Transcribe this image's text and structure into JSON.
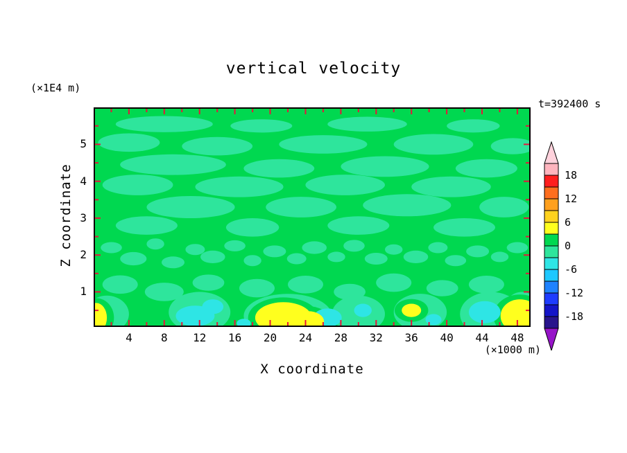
{
  "chart_data": {
    "type": "heatmap",
    "title": "vertical velocity",
    "time_label": "t=392400 s",
    "xlabel": "X coordinate",
    "x_unit": "(×1000 m)",
    "ylabel": "Z coordinate",
    "y_unit": "(×1E4 m)",
    "xlim": [
      0,
      49.5
    ],
    "ylim": [
      0,
      6
    ],
    "x_tick_labels": [
      "4",
      "8",
      "12",
      "16",
      "20",
      "24",
      "28",
      "32",
      "36",
      "40",
      "44",
      "48"
    ],
    "x_tick_values": [
      4,
      8,
      12,
      16,
      20,
      24,
      28,
      32,
      36,
      40,
      44,
      48
    ],
    "x_minor_step": 2,
    "z_tick_labels": [
      "1",
      "2",
      "3",
      "4",
      "5"
    ],
    "z_tick_values": [
      1,
      2,
      3,
      4,
      5
    ],
    "z_minor_step": 0.5,
    "tick_color": "#E8143C",
    "frame_color": "#000000",
    "colorbar": {
      "levels": [
        -21,
        -18,
        -15,
        -12,
        -9,
        -6,
        -3,
        0,
        3,
        6,
        9,
        12,
        15,
        18,
        21
      ],
      "label_values": [
        "18",
        "12",
        "6",
        "0",
        "-6",
        "-12",
        "-18"
      ],
      "segment_colors_top_to_bottom": [
        "#FFB4BE",
        "#FF1E1E",
        "#FF6E1E",
        "#FFA01E",
        "#FFD21E",
        "#FFFF1E",
        "#00D850",
        "#2EE59C",
        "#2EE5E5",
        "#1EC8FF",
        "#1E82FF",
        "#1E3CFF",
        "#1414C8",
        "#28148C"
      ],
      "top_arrow_color": "#FFD2DC",
      "bottom_arrow_color": "#9614C8"
    },
    "field": {
      "base_color": "#00D850",
      "light_color": "#2EE59C",
      "cyan_color": "#2EE5E5",
      "yellow_color": "#FFFF1E",
      "halo_color": "#00D850",
      "light_patches": [
        [
          8,
          5.55,
          5.5,
          0.22
        ],
        [
          19,
          5.5,
          3.5,
          0.18
        ],
        [
          31,
          5.55,
          4.5,
          0.2
        ],
        [
          43,
          5.5,
          3,
          0.18
        ],
        [
          4,
          5.05,
          3.5,
          0.25
        ],
        [
          14,
          4.95,
          4,
          0.25
        ],
        [
          26,
          5,
          5,
          0.25
        ],
        [
          38.5,
          5,
          4.5,
          0.28
        ],
        [
          47.5,
          4.95,
          2.5,
          0.22
        ],
        [
          9,
          4.45,
          6,
          0.28
        ],
        [
          21,
          4.35,
          4,
          0.25
        ],
        [
          33,
          4.4,
          5,
          0.28
        ],
        [
          44.5,
          4.35,
          3.5,
          0.25
        ],
        [
          5,
          3.9,
          4,
          0.28
        ],
        [
          16.5,
          3.85,
          5,
          0.28
        ],
        [
          28.5,
          3.9,
          4.5,
          0.28
        ],
        [
          40.5,
          3.85,
          4.5,
          0.28
        ],
        [
          11,
          3.3,
          5,
          0.3
        ],
        [
          23.5,
          3.3,
          4,
          0.28
        ],
        [
          35.5,
          3.35,
          5,
          0.3
        ],
        [
          46.5,
          3.3,
          2.8,
          0.28
        ],
        [
          6,
          2.8,
          3.5,
          0.25
        ],
        [
          18,
          2.75,
          3,
          0.25
        ],
        [
          30,
          2.8,
          3.5,
          0.25
        ],
        [
          42,
          2.75,
          3.5,
          0.25
        ],
        [
          2,
          2.2,
          1.2,
          0.15
        ],
        [
          4.5,
          1.9,
          1.5,
          0.18
        ],
        [
          7,
          2.3,
          1,
          0.15
        ],
        [
          9,
          1.8,
          1.3,
          0.16
        ],
        [
          11.5,
          2.15,
          1.1,
          0.15
        ],
        [
          13.5,
          1.95,
          1.4,
          0.17
        ],
        [
          16,
          2.25,
          1.2,
          0.15
        ],
        [
          18,
          1.85,
          1,
          0.15
        ],
        [
          20.5,
          2.1,
          1.3,
          0.16
        ],
        [
          23,
          1.9,
          1.1,
          0.15
        ],
        [
          25,
          2.2,
          1.4,
          0.17
        ],
        [
          27.5,
          1.95,
          1,
          0.14
        ],
        [
          29.5,
          2.25,
          1.2,
          0.16
        ],
        [
          32,
          1.9,
          1.3,
          0.16
        ],
        [
          34,
          2.15,
          1,
          0.14
        ],
        [
          36.5,
          1.95,
          1.4,
          0.17
        ],
        [
          39,
          2.2,
          1.1,
          0.15
        ],
        [
          41,
          1.85,
          1.2,
          0.15
        ],
        [
          43.5,
          2.1,
          1.3,
          0.16
        ],
        [
          46,
          1.95,
          1,
          0.14
        ],
        [
          48,
          2.2,
          1.2,
          0.15
        ],
        [
          3,
          1.2,
          2,
          0.25
        ],
        [
          8,
          1,
          2.2,
          0.25
        ],
        [
          13,
          1.25,
          1.8,
          0.22
        ],
        [
          18.5,
          1.1,
          2,
          0.25
        ],
        [
          24,
          1.2,
          2,
          0.24
        ],
        [
          29,
          1,
          1.8,
          0.22
        ],
        [
          34,
          1.25,
          2,
          0.25
        ],
        [
          39.5,
          1.1,
          1.8,
          0.22
        ],
        [
          44.5,
          1.2,
          2,
          0.24
        ],
        [
          1.5,
          0.4,
          2.5,
          0.5
        ],
        [
          12,
          0.45,
          3.5,
          0.55
        ],
        [
          22,
          0.35,
          5,
          0.6
        ],
        [
          30,
          0.4,
          3,
          0.5
        ],
        [
          37,
          0.45,
          3,
          0.5
        ],
        [
          45,
          0.4,
          3.5,
          0.6
        ],
        [
          48.5,
          0.5,
          2,
          0.5
        ]
      ],
      "cyan_patches": [
        [
          11.5,
          0.35,
          2.2,
          0.28
        ],
        [
          13.5,
          0.6,
          1.2,
          0.2
        ],
        [
          26.5,
          0.3,
          1.6,
          0.25
        ],
        [
          30.5,
          0.5,
          1,
          0.18
        ],
        [
          44.3,
          0.45,
          1.8,
          0.3
        ],
        [
          38.5,
          0.25,
          0.9,
          0.15
        ],
        [
          17,
          0.15,
          0.8,
          0.12
        ]
      ],
      "yellow_patches": [
        [
          21.5,
          0.3,
          3.2,
          0.42
        ],
        [
          24.3,
          0.2,
          1.8,
          0.28
        ],
        [
          36,
          0.5,
          1.1,
          0.18
        ],
        [
          48.3,
          0.35,
          2.2,
          0.45
        ],
        [
          0.3,
          0.3,
          1.2,
          0.4
        ]
      ]
    }
  }
}
